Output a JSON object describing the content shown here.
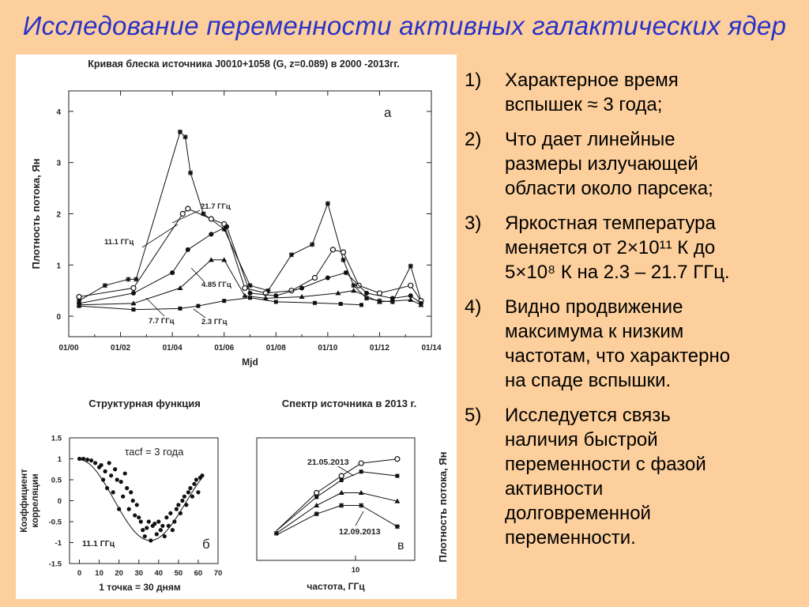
{
  "slide_title": "Исследование переменности активных галактических ядер",
  "bullets": [
    {
      "num": "1)",
      "text": "Характерное время\nвспышек ≈ 3 года;"
    },
    {
      "num": "2)",
      "text": "Что дает линейные\nразмеры излучающей\nобласти около парсека;"
    },
    {
      "num": "3)",
      "text": "Яркостная температура\nменяется от 2×10¹¹ К до\n5×10⁸ К на 2.3 – 21.7 ГГц."
    },
    {
      "num": "4)",
      "text": "Видно продвижение\nмаксимума к низким\nчастотам, что характерно\nна спаде вспышки."
    },
    {
      "num": "5)",
      "text": "Исследуется связь\nналичия быстрой\nпеременности с фазой\nактивности\nдолговременной\nпеременности."
    }
  ],
  "chart_data": [
    {
      "type": "line",
      "title": "Кривая блеска источника J0010+1058 (G, z=0.089) в 2000 -2013гг.",
      "panel_label": "а",
      "xlabel": "Mjd",
      "ylabel": "Плотность потока, Ян",
      "x_ticks": [
        "01/00",
        "01/02",
        "01/04",
        "01/06",
        "01/08",
        "01/10",
        "01/12",
        "01/14"
      ],
      "xlim": [
        2000,
        2014
      ],
      "ylim": [
        -0.4,
        4.4
      ],
      "y_ticks": [
        0,
        1,
        2,
        3,
        4
      ],
      "series": [
        {
          "name": "21.7 ГГц",
          "x": [
            2000.4,
            2001.4,
            2002.3,
            2002.6,
            2004.3,
            2004.5,
            2004.7,
            2005.2,
            2006.0,
            2007.0,
            2007.7,
            2008.6,
            2009.4,
            2010.0,
            2010.6,
            2011.0,
            2011.5,
            2012.0,
            2012.5,
            2013.2,
            2013.6
          ],
          "y": [
            0.3,
            0.6,
            0.72,
            0.72,
            3.6,
            3.5,
            2.8,
            2.0,
            1.7,
            0.6,
            0.5,
            1.2,
            1.4,
            2.2,
            1.1,
            0.6,
            0.35,
            0.3,
            0.28,
            0.98,
            0.3
          ]
        },
        {
          "name": "11.1 ГГц",
          "x": [
            2000.4,
            2002.5,
            2004.4,
            2004.6,
            2005.5,
            2006.0,
            2006.8,
            2007.6,
            2008.6,
            2009.5,
            2010.2,
            2010.6,
            2011.2,
            2012.0,
            2013.2,
            2013.6
          ],
          "y": [
            0.38,
            0.55,
            2.0,
            2.1,
            1.9,
            1.8,
            0.55,
            0.45,
            0.5,
            0.75,
            1.3,
            1.25,
            0.6,
            0.45,
            0.6,
            0.3
          ]
        },
        {
          "name": "7.7 ГГц",
          "x": [
            2000.4,
            2002.5,
            2004.0,
            2004.6,
            2005.5,
            2006.1,
            2007.0,
            2008.0,
            2009.0,
            2010.0,
            2010.7,
            2011.5,
            2012.5,
            2013.2,
            2013.6
          ],
          "y": [
            0.25,
            0.45,
            0.85,
            1.3,
            1.6,
            1.75,
            0.45,
            0.4,
            0.55,
            0.75,
            0.85,
            0.45,
            0.35,
            0.4,
            0.25
          ]
        },
        {
          "name": "4.85 ГГц",
          "x": [
            2000.4,
            2002.5,
            2004.3,
            2005.5,
            2006.0,
            2006.8,
            2007.6,
            2009.0,
            2010.4,
            2011.0,
            2012.0,
            2013.2,
            2013.6
          ],
          "y": [
            0.22,
            0.25,
            0.55,
            1.1,
            1.1,
            0.4,
            0.35,
            0.38,
            0.45,
            0.5,
            0.28,
            0.32,
            0.22
          ]
        },
        {
          "name": "2.3 ГГц",
          "x": [
            2000.4,
            2002.5,
            2004.3,
            2005.0,
            2006.0,
            2007.0,
            2008.0,
            2009.5,
            2010.5,
            2011.3
          ],
          "y": [
            0.2,
            0.13,
            0.15,
            0.2,
            0.3,
            0.36,
            0.28,
            0.26,
            0.24,
            0.22
          ]
        }
      ]
    },
    {
      "type": "scatter",
      "title": "Структурная функция",
      "panel_label": "б",
      "annotation": "τacf = 3 года",
      "series_label": "11.1 ГГц",
      "xlabel": "1 точка = 30 дням",
      "ylabel": "Коэффициент корреляции",
      "xlim": [
        -5,
        70
      ],
      "ylim": [
        -1.5,
        1.5
      ],
      "x_ticks": [
        0,
        10,
        20,
        30,
        40,
        50,
        60,
        70
      ],
      "y_ticks": [
        1.5,
        1,
        0.5,
        0,
        -0.5,
        -1,
        -1.5
      ],
      "points_x": [
        0,
        2,
        4,
        6,
        8,
        10,
        11,
        12,
        13,
        14,
        15,
        16,
        17,
        18,
        19,
        20,
        21,
        22,
        23,
        24,
        25,
        26,
        27,
        28,
        29,
        30,
        31,
        32,
        33,
        34,
        35,
        36,
        37,
        38,
        39,
        40,
        41,
        42,
        43,
        44,
        45,
        46,
        47,
        48,
        49,
        50,
        51,
        52,
        53,
        54,
        55,
        56,
        57,
        58,
        59,
        60,
        61,
        62
      ],
      "points_y": [
        1.0,
        1.0,
        0.98,
        0.96,
        0.9,
        0.8,
        0.85,
        0.5,
        0.7,
        0.3,
        0.9,
        0.6,
        0.2,
        0.75,
        0.5,
        -0.2,
        0.45,
        0.1,
        0.65,
        0.3,
        -0.2,
        0.2,
        0.0,
        -0.35,
        -0.1,
        -0.4,
        -0.5,
        -0.7,
        -0.85,
        -0.65,
        -0.5,
        -0.95,
        -0.6,
        -0.55,
        -0.8,
        -0.5,
        -0.7,
        -0.6,
        -0.85,
        -0.4,
        -0.6,
        -0.3,
        -0.7,
        -0.5,
        -0.2,
        -0.1,
        -0.3,
        0.0,
        0.1,
        -0.1,
        0.2,
        0.3,
        0.1,
        0.4,
        0.5,
        0.2,
        0.55,
        0.6
      ],
      "fit": "damped cosine"
    },
    {
      "type": "line",
      "title": "Спектр источника в 2013 г.",
      "panel_label": "в",
      "xlabel": "частота, ГГц",
      "ylabel": "Плотность потока, Ян",
      "x_tick": "10",
      "annotations": [
        "21.05.2013",
        "12.09.2013"
      ],
      "series": [
        {
          "x_GHz": [
            2.3,
            4.85,
            7.7,
            11.1,
            21.7
          ],
          "y": [
            0.15,
            0.6,
            0.8,
            0.95,
            1.0
          ]
        },
        {
          "x_GHz": [
            2.3,
            4.85,
            7.7,
            11.1,
            21.7
          ],
          "y": [
            0.15,
            0.55,
            0.75,
            0.85,
            0.8
          ]
        },
        {
          "x_GHz": [
            2.3,
            4.85,
            7.7,
            11.1,
            21.7
          ],
          "y": [
            0.12,
            0.45,
            0.6,
            0.6,
            0.5
          ]
        },
        {
          "x_GHz": [
            2.3,
            4.85,
            7.7,
            11.1,
            21.7
          ],
          "y": [
            0.1,
            0.35,
            0.45,
            0.45,
            0.2
          ]
        }
      ]
    }
  ]
}
